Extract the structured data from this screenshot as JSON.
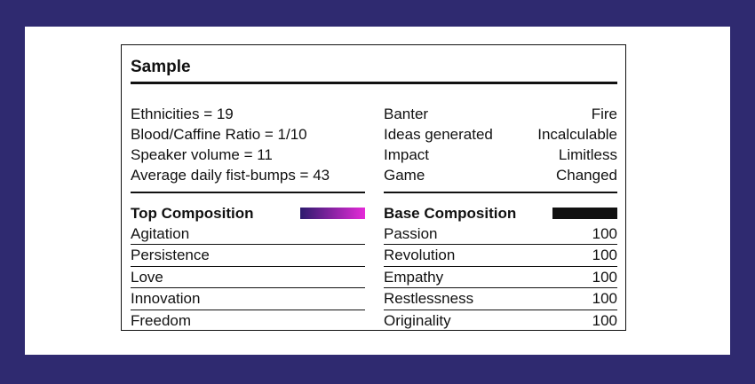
{
  "title": "Sample",
  "stats_left": [
    "Ethnicities = 19",
    "Blood/Caffine Ratio = 1/10",
    "Speaker volume = 11",
    "Average daily fist-bumps = 43"
  ],
  "stats_right": [
    {
      "label": "Banter",
      "value": "Fire"
    },
    {
      "label": "Ideas generated",
      "value": "Incalculable"
    },
    {
      "label": "Impact",
      "value": "Limitless"
    },
    {
      "label": "Game",
      "value": "Changed"
    }
  ],
  "top_composition": {
    "heading": "Top Composition",
    "swatch_colors": [
      "#2d1b6e",
      "#e52ad8"
    ],
    "items": [
      "Agitation",
      "Persistence",
      "Love",
      "Innovation",
      "Freedom"
    ]
  },
  "base_composition": {
    "heading": "Base Composition",
    "swatch_color": "#111111",
    "items": [
      {
        "label": "Passion",
        "value": "100"
      },
      {
        "label": "Revolution",
        "value": "100"
      },
      {
        "label": "Empathy",
        "value": "100"
      },
      {
        "label": "Restlessness",
        "value": "100"
      },
      {
        "label": "Originality",
        "value": "100"
      }
    ]
  }
}
